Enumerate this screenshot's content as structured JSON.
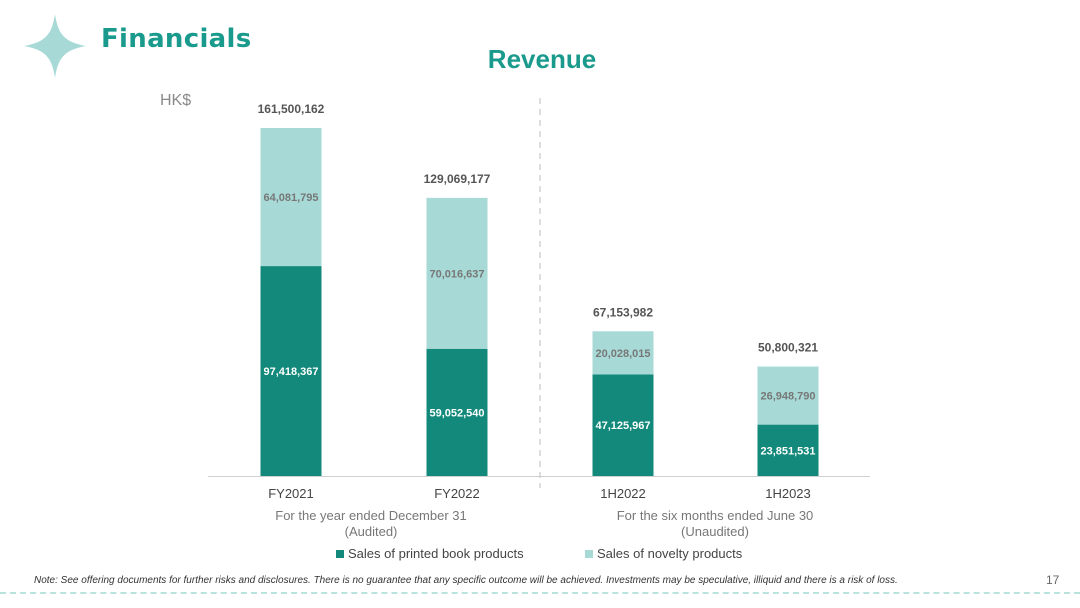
{
  "header": {
    "section_title": "Financials",
    "logo_icon": "four-point-star-icon"
  },
  "colors": {
    "accent": "#1a9a8c",
    "printed": "#12897a",
    "novelty": "#a7dad6"
  },
  "chart_data": {
    "type": "bar",
    "stacked": true,
    "title": "Revenue",
    "unit_label": "HK$",
    "categories": [
      "FY2021",
      "FY2022",
      "1H2022",
      "1H2023"
    ],
    "totals": [
      "161,500,162",
      "129,069,177",
      "67,153,982",
      "50,800,321"
    ],
    "total_values": [
      161500162,
      129069177,
      67153982,
      50800321
    ],
    "series": [
      {
        "name": "Sales of printed book products",
        "values": [
          97418367,
          59052540,
          47125967,
          23851531
        ],
        "labels": [
          "97,418,367",
          "59,052,540",
          "47,125,967",
          "23,851,531"
        ]
      },
      {
        "name": "Sales of novelty products",
        "values": [
          64081795,
          70016637,
          20028015,
          26948790
        ],
        "labels": [
          "64,081,795",
          "70,016,637",
          "20,028,015",
          "26,948,790"
        ]
      }
    ],
    "groups": [
      {
        "caption_line1": "For the year ended December 31",
        "caption_line2": "(Audited)"
      },
      {
        "caption_line1": "For the six months ended June 30",
        "caption_line2": "(Unaudited)"
      }
    ],
    "legend_position": "bottom",
    "grid": false
  },
  "footer": {
    "note": "Note: See offering documents for further risks and disclosures. There is no guarantee that any specific outcome will be achieved. Investments may be  speculative, illiquid and there is a risk of loss.",
    "page_number": "17"
  }
}
